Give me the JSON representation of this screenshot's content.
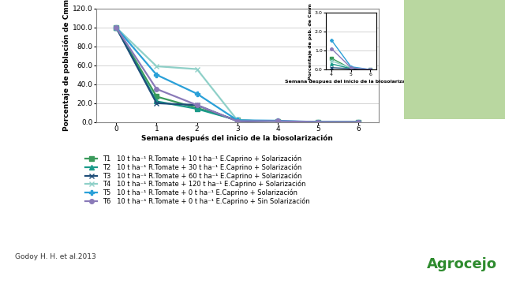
{
  "chart_data": [
    {
      "type": "line",
      "x_label": "Semana después del inicio de la biosolarización",
      "y_label": "Porcentaje de población de Cmm",
      "x": [
        0,
        1,
        2,
        3,
        4,
        5,
        6
      ],
      "xlim": [
        -0.5,
        6.5
      ],
      "xticks": [
        0,
        1,
        2,
        3,
        4,
        5,
        6
      ],
      "ylim": [
        0,
        120
      ],
      "yticks": [
        {
          "value": 0,
          "label": "0.0"
        },
        {
          "value": 20,
          "label": "20.0"
        },
        {
          "value": 40,
          "label": "40.0"
        },
        {
          "value": 60,
          "label": "60.0"
        },
        {
          "value": 80,
          "label": "80.0"
        },
        {
          "value": 100,
          "label": "100.0"
        },
        {
          "value": 120,
          "label": "120.0"
        }
      ],
      "grid": true,
      "legend": "upper left",
      "series": [
        {
          "name": "T1   10 t ha⁻¹ R.Tomate + 10 t ha⁻¹ E.Caprino + Solarización",
          "color": "#3a9a5b",
          "marker": "square",
          "values": [
            100,
            27,
            15,
            2,
            0.6,
            0.05,
            0
          ]
        },
        {
          "name": "T2   10 t ha⁻¹ R.Tomate + 30 t ha⁻¹ E.Caprino + Solarización",
          "color": "#1a9a8a",
          "marker": "triangle",
          "values": [
            100,
            22,
            14,
            2,
            0.3,
            0.05,
            0
          ]
        },
        {
          "name": "T3   10 t ha⁻¹ R.Tomate + 60 t ha⁻¹ E.Caprino + Solarización",
          "color": "#1f4e79",
          "marker": "x",
          "values": [
            100,
            20,
            18,
            1,
            0.1,
            0.05,
            0
          ]
        },
        {
          "name": "T4   10 t ha⁻¹ R.Tomate + 120 t ha⁻¹ E.Caprino + Solarización",
          "color": "#8fd0c8",
          "marker": "x",
          "values": [
            100,
            59,
            56,
            2,
            0.45,
            0.1,
            0
          ]
        },
        {
          "name": "T5   10 t ha⁻¹ R.Tomate + 0 t ha⁻¹ E.Caprino + Solarización",
          "color": "#2aa0d8",
          "marker": "plus",
          "values": [
            100,
            50,
            30,
            2,
            1.55,
            0.15,
            0
          ]
        },
        {
          "name": "T6   10 t ha⁻¹ R.Tomate + 0 t ha⁻¹ E.Caprino + Sin Solarización",
          "color": "#8a7ab8",
          "marker": "circle",
          "values": [
            100,
            35,
            18,
            1,
            1.1,
            0.1,
            0
          ]
        }
      ]
    },
    {
      "type": "line",
      "x_label": "Semana despues del inicio de la biosolarización",
      "y_label": "Porcentaje de pob. de Cmm",
      "x": [
        4,
        5,
        6
      ],
      "xlim": [
        3.7,
        6.3
      ],
      "xticks": [
        4,
        5,
        6
      ],
      "ylim": [
        0,
        3
      ],
      "yticks": [
        {
          "value": 0,
          "label": "0.0"
        },
        {
          "value": 1,
          "label": "1.0"
        },
        {
          "value": 2,
          "label": "2.0"
        },
        {
          "value": 3,
          "label": "3.0"
        }
      ],
      "grid": true,
      "series": [
        {
          "name": "T1",
          "color": "#3a9a5b",
          "marker": "square",
          "values": [
            0.6,
            0.05,
            0
          ]
        },
        {
          "name": "T2",
          "color": "#1a9a8a",
          "marker": "triangle",
          "values": [
            0.3,
            0.05,
            0
          ]
        },
        {
          "name": "T3",
          "color": "#1f4e79",
          "marker": "x",
          "values": [
            0.1,
            0.05,
            0
          ]
        },
        {
          "name": "T4",
          "color": "#8fd0c8",
          "marker": "x",
          "values": [
            0.45,
            0.1,
            0
          ]
        },
        {
          "name": "T5",
          "color": "#2aa0d8",
          "marker": "plus",
          "values": [
            1.55,
            0.15,
            0
          ]
        },
        {
          "name": "T6",
          "color": "#8a7ab8",
          "marker": "circle",
          "values": [
            1.1,
            0.1,
            0
          ]
        }
      ]
    }
  ],
  "source": "Godoy H. H. et al.2013",
  "logo": "Agrocejo"
}
